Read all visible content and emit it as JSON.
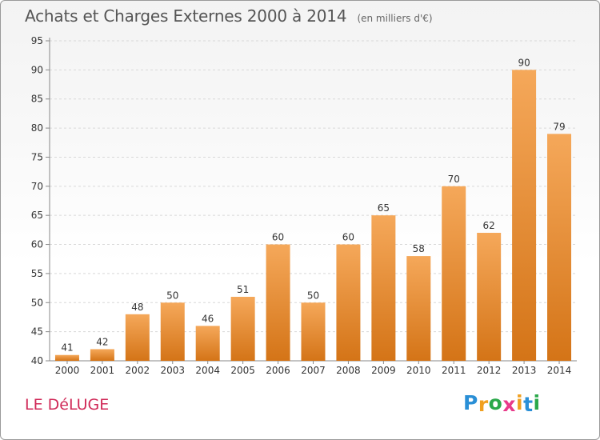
{
  "title": "Achats et Charges Externes 2000 à 2014",
  "unit": "(en milliers d'€)",
  "commune": "LE DéLUGE",
  "logo": {
    "letters": [
      "P",
      "r",
      "o",
      "x",
      "i",
      "t",
      "i"
    ],
    "colors": [
      "#2a8fd6",
      "#f0a020",
      "#2aa84a",
      "#e83a8a",
      "#f0a020",
      "#2a8fd6",
      "#2aa84a"
    ]
  },
  "colors": {
    "bar_top": "#f5a85a",
    "bar_bottom": "#d47417",
    "grid": "#d8d8d8",
    "axis": "#888888"
  },
  "chart_data": {
    "type": "bar",
    "title": "Achats et Charges Externes 2000 à 2014",
    "categories": [
      "2000",
      "2001",
      "2002",
      "2003",
      "2004",
      "2005",
      "2006",
      "2007",
      "2008",
      "2009",
      "2010",
      "2011",
      "2012",
      "2013",
      "2014"
    ],
    "values": [
      41,
      42,
      48,
      50,
      46,
      51,
      60,
      50,
      60,
      65,
      58,
      70,
      62,
      90,
      79
    ],
    "ylim": [
      40,
      95
    ],
    "yticks": [
      40,
      45,
      50,
      55,
      60,
      65,
      70,
      75,
      80,
      85,
      90,
      95
    ],
    "grid": "horizontal dashed",
    "xlabel": "",
    "ylabel": ""
  }
}
